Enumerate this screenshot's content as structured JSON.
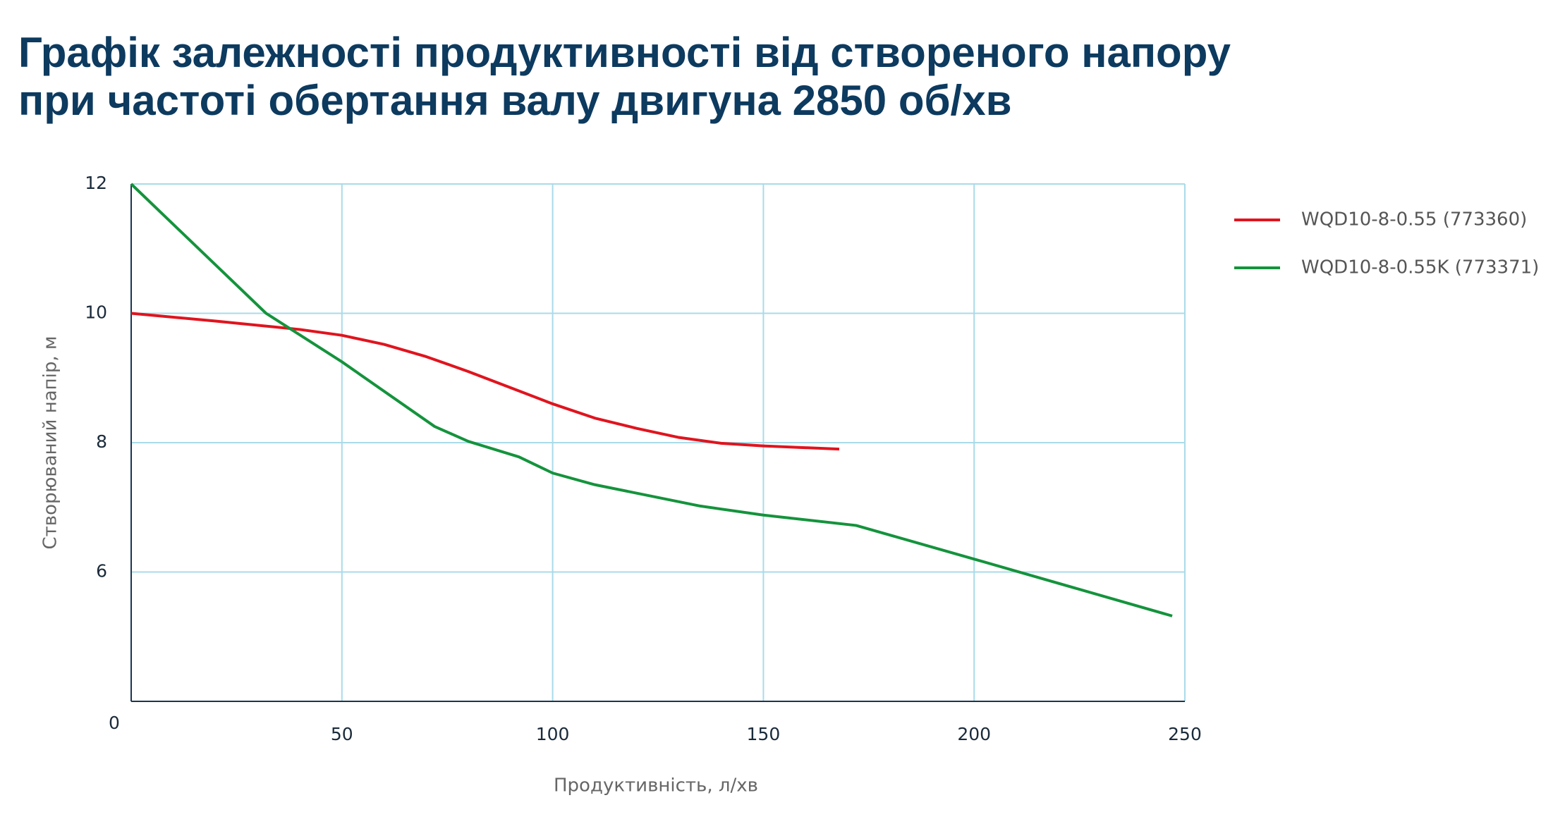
{
  "chart_data": {
    "type": "line",
    "title": [
      "Графік залежності продуктивності від створеного напору",
      "при частоті обертання валу двигуна 2850 об/хв"
    ],
    "xlabel": "Продуктивність, л/хв",
    "ylabel": "Створюваний напір, м",
    "xlim": [
      0,
      250
    ],
    "xticks": [
      0,
      50,
      100,
      150,
      200,
      250
    ],
    "ylim": [
      4,
      12
    ],
    "yticks": [
      6,
      8,
      10,
      12
    ],
    "grid": true,
    "legend": "right",
    "series": [
      {
        "name": "WQD10-8-0.55 (773360)",
        "color": "#e0141e",
        "x": [
          0,
          20,
          40,
          50,
          60,
          70,
          80,
          90,
          100,
          110,
          120,
          130,
          140,
          150,
          168
        ],
        "values": [
          10,
          9.88,
          9.75,
          9.66,
          9.52,
          9.33,
          9.1,
          8.85,
          8.6,
          8.38,
          8.22,
          8.08,
          7.99,
          7.95,
          7.9
        ]
      },
      {
        "name": "WQD10-8-0.55K (773371)",
        "color": "#14933c",
        "x": [
          0,
          32,
          50,
          72,
          80,
          92,
          100,
          110,
          135,
          150,
          172,
          200,
          247
        ],
        "values": [
          12,
          10,
          9.25,
          8.25,
          8.02,
          7.78,
          7.53,
          7.35,
          7.02,
          6.88,
          6.72,
          6.2,
          5.32
        ]
      }
    ]
  }
}
